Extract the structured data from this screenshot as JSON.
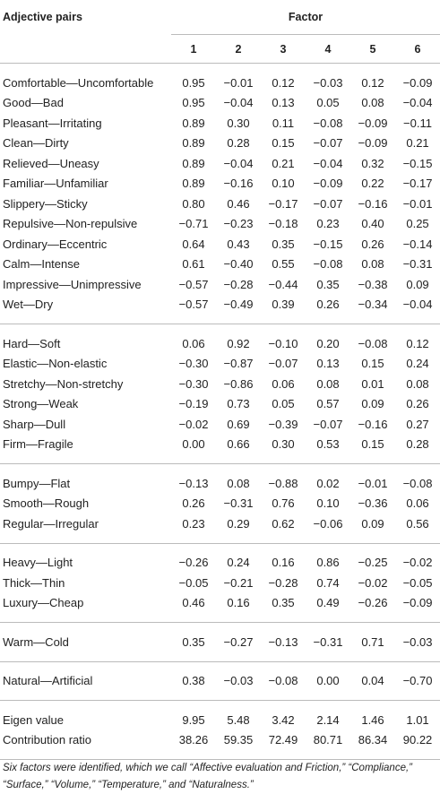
{
  "header": {
    "title": "Adjective pairs",
    "factor": "Factor",
    "columns": [
      "1",
      "2",
      "3",
      "4",
      "5",
      "6"
    ]
  },
  "groups": [
    [
      {
        "label": "Comfortable—Uncomfortable",
        "values": [
          "0.95",
          "−0.01",
          "0.12",
          "−0.03",
          "0.12",
          "−0.09"
        ]
      },
      {
        "label": "Good—Bad",
        "values": [
          "0.95",
          "−0.04",
          "0.13",
          "0.05",
          "0.08",
          "−0.04"
        ]
      },
      {
        "label": "Pleasant—Irritating",
        "values": [
          "0.89",
          "0.30",
          "0.11",
          "−0.08",
          "−0.09",
          "−0.11"
        ]
      },
      {
        "label": "Clean—Dirty",
        "values": [
          "0.89",
          "0.28",
          "0.15",
          "−0.07",
          "−0.09",
          "0.21"
        ]
      },
      {
        "label": "Relieved—Uneasy",
        "values": [
          "0.89",
          "−0.04",
          "0.21",
          "−0.04",
          "0.32",
          "−0.15"
        ]
      },
      {
        "label": "Familiar—Unfamiliar",
        "values": [
          "0.89",
          "−0.16",
          "0.10",
          "−0.09",
          "0.22",
          "−0.17"
        ]
      },
      {
        "label": "Slippery—Sticky",
        "values": [
          "0.80",
          "0.46",
          "−0.17",
          "−0.07",
          "−0.16",
          "−0.01"
        ]
      },
      {
        "label": "Repulsive—Non-repulsive",
        "values": [
          "−0.71",
          "−0.23",
          "−0.18",
          "0.23",
          "0.40",
          "0.25"
        ]
      },
      {
        "label": "Ordinary—Eccentric",
        "values": [
          "0.64",
          "0.43",
          "0.35",
          "−0.15",
          "0.26",
          "−0.14"
        ]
      },
      {
        "label": "Calm—Intense",
        "values": [
          "0.61",
          "−0.40",
          "0.55",
          "−0.08",
          "0.08",
          "−0.31"
        ]
      },
      {
        "label": "Impressive—Unimpressive",
        "values": [
          "−0.57",
          "−0.28",
          "−0.44",
          "0.35",
          "−0.38",
          "0.09"
        ]
      },
      {
        "label": "Wet—Dry",
        "values": [
          "−0.57",
          "−0.49",
          "0.39",
          "0.26",
          "−0.34",
          "−0.04"
        ]
      }
    ],
    [
      {
        "label": "Hard—Soft",
        "values": [
          "0.06",
          "0.92",
          "−0.10",
          "0.20",
          "−0.08",
          "0.12"
        ]
      },
      {
        "label": "Elastic—Non-elastic",
        "values": [
          "−0.30",
          "−0.87",
          "−0.07",
          "0.13",
          "0.15",
          "0.24"
        ]
      },
      {
        "label": "Stretchy—Non-stretchy",
        "values": [
          "−0.30",
          "−0.86",
          "0.06",
          "0.08",
          "0.01",
          "0.08"
        ]
      },
      {
        "label": "Strong—Weak",
        "values": [
          "−0.19",
          "0.73",
          "0.05",
          "0.57",
          "0.09",
          "0.26"
        ]
      },
      {
        "label": "Sharp—Dull",
        "values": [
          "−0.02",
          "0.69",
          "−0.39",
          "−0.07",
          "−0.16",
          "0.27"
        ]
      },
      {
        "label": "Firm—Fragile",
        "values": [
          "0.00",
          "0.66",
          "0.30",
          "0.53",
          "0.15",
          "0.28"
        ]
      }
    ],
    [
      {
        "label": "Bumpy—Flat",
        "values": [
          "−0.13",
          "0.08",
          "−0.88",
          "0.02",
          "−0.01",
          "−0.08"
        ]
      },
      {
        "label": "Smooth—Rough",
        "values": [
          "0.26",
          "−0.31",
          "0.76",
          "0.10",
          "−0.36",
          "0.06"
        ]
      },
      {
        "label": "Regular—Irregular",
        "values": [
          "0.23",
          "0.29",
          "0.62",
          "−0.06",
          "0.09",
          "0.56"
        ]
      }
    ],
    [
      {
        "label": "Heavy—Light",
        "values": [
          "−0.26",
          "0.24",
          "0.16",
          "0.86",
          "−0.25",
          "−0.02"
        ]
      },
      {
        "label": "Thick—Thin",
        "values": [
          "−0.05",
          "−0.21",
          "−0.28",
          "0.74",
          "−0.02",
          "−0.05"
        ]
      },
      {
        "label": "Luxury—Cheap",
        "values": [
          "0.46",
          "0.16",
          "0.35",
          "0.49",
          "−0.26",
          "−0.09"
        ]
      }
    ],
    [
      {
        "label": "Warm—Cold",
        "values": [
          "0.35",
          "−0.27",
          "−0.13",
          "−0.31",
          "0.71",
          "−0.03"
        ]
      }
    ],
    [
      {
        "label": "Natural—Artificial",
        "values": [
          "0.38",
          "−0.03",
          "−0.08",
          "0.00",
          "0.04",
          "−0.70"
        ]
      }
    ],
    [
      {
        "label": "Eigen value",
        "values": [
          "9.95",
          "5.48",
          "3.42",
          "2.14",
          "1.46",
          "1.01"
        ]
      },
      {
        "label": "Contribution ratio",
        "values": [
          "38.26",
          "59.35",
          "72.49",
          "80.71",
          "86.34",
          "90.22"
        ]
      }
    ]
  ],
  "footnote": "Six factors were identified, which we call “Affective evaluation and Friction,” “Compliance,” “Surface,” “Volume,” “Temperature,” and “Naturalness.”"
}
